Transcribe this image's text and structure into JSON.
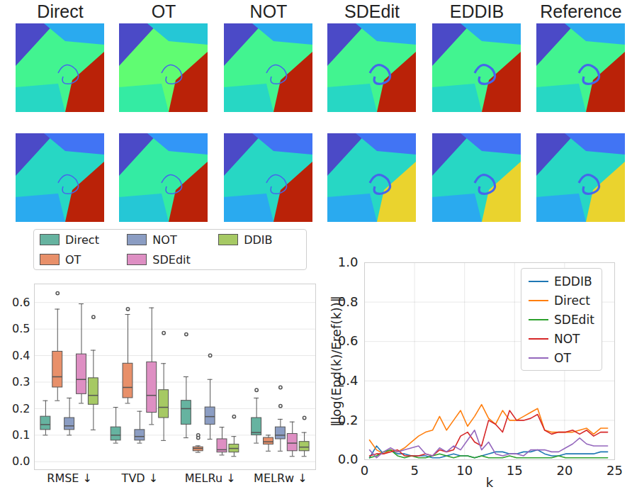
{
  "image_grid": {
    "column_titles": [
      "Direct",
      "OT",
      "NOT",
      "SDEdit",
      "EDDIB",
      "Reference"
    ]
  },
  "chart_data": [
    {
      "type": "box",
      "categories": [
        "RMSE ↓",
        "TVD ↓",
        "MELRu ↓",
        "MELRw ↓"
      ],
      "series": [
        {
          "name": "Direct",
          "color": "#66b3a0",
          "min": [
            0.1,
            0.07,
            0.09,
            0.07
          ],
          "q1": [
            0.12,
            0.08,
            0.14,
            0.1
          ],
          "median": [
            0.14,
            0.1,
            0.2,
            0.11
          ],
          "q3": [
            0.17,
            0.13,
            0.23,
            0.165
          ],
          "max": [
            0.23,
            0.205,
            0.32,
            0.24
          ],
          "outliers": [
            [],
            [],
            [
              0.48
            ],
            [
              0.27
            ]
          ]
        },
        {
          "name": "OT",
          "color": "#e8906a",
          "min": [
            0.23,
            0.22,
            0.035,
            0.04
          ],
          "q1": [
            0.28,
            0.24,
            0.04,
            0.065
          ],
          "median": [
            0.32,
            0.28,
            0.05,
            0.075
          ],
          "q3": [
            0.415,
            0.37,
            0.055,
            0.09
          ],
          "max": [
            0.575,
            0.555,
            0.06,
            0.1
          ],
          "outliers": [
            [
              0.635
            ],
            [
              0.575
            ],
            [
              0.1,
              0.09
            ],
            []
          ]
        },
        {
          "name": "NOT",
          "color": "#8b9dc3",
          "min": [
            0.1,
            0.07,
            0.085,
            0.04
          ],
          "q1": [
            0.12,
            0.08,
            0.14,
            0.085
          ],
          "median": [
            0.135,
            0.095,
            0.17,
            0.1
          ],
          "q3": [
            0.165,
            0.12,
            0.205,
            0.13
          ],
          "max": [
            0.24,
            0.19,
            0.31,
            0.16
          ],
          "outliers": [
            [],
            [],
            [
              0.4
            ],
            [
              0.21,
              0.28
            ]
          ]
        },
        {
          "name": "SDEdit",
          "color": "#de8fc3",
          "min": [
            0.22,
            0.14,
            0.025,
            0.02
          ],
          "q1": [
            0.255,
            0.185,
            0.035,
            0.04
          ],
          "median": [
            0.31,
            0.25,
            0.045,
            0.07
          ],
          "q3": [
            0.405,
            0.375,
            0.085,
            0.105
          ],
          "max": [
            0.595,
            0.58,
            0.13,
            0.15
          ],
          "outliers": [
            [],
            [],
            [],
            []
          ]
        },
        {
          "name": "DDIB",
          "color": "#a6c964",
          "min": [
            0.12,
            0.08,
            0.02,
            0.02
          ],
          "q1": [
            0.215,
            0.165,
            0.035,
            0.04
          ],
          "median": [
            0.25,
            0.205,
            0.05,
            0.055
          ],
          "q3": [
            0.315,
            0.27,
            0.065,
            0.075
          ],
          "max": [
            0.42,
            0.37,
            0.095,
            0.11
          ],
          "outliers": [
            [
              0.545
            ],
            [
              0.485
            ],
            [
              0.17
            ],
            [
              0.165
            ]
          ]
        }
      ],
      "ylim": [
        -0.03,
        0.67
      ],
      "yticks": [
        {
          "value": 0,
          "label": "0.0"
        },
        0.1,
        0.2,
        0.3,
        0.4,
        0.5,
        0.6
      ],
      "grid": true,
      "legend": "top"
    },
    {
      "type": "line",
      "x_label": "k",
      "y_label": "‖log(Epd(k)/Eref(k))‖",
      "x": [
        0.5,
        1.2,
        1.9,
        2.6,
        3.3,
        4.0,
        4.7,
        5.4,
        6.1,
        6.8,
        7.5,
        8.2,
        8.9,
        9.6,
        10.3,
        11.0,
        11.7,
        12.4,
        13.1,
        13.8,
        14.5,
        15.2,
        15.9,
        16.6,
        17.3,
        18.0,
        18.7,
        19.4,
        20.1,
        20.8,
        21.5,
        22.2,
        22.9,
        23.6,
        24.3
      ],
      "series": [
        {
          "name": "EDDIB",
          "color": "#1f77b4",
          "values": [
            0.01,
            0.07,
            0.03,
            0.05,
            0.03,
            0.03,
            0.02,
            0.02,
            0.02,
            0.01,
            0.01,
            0.02,
            0.03,
            0.02,
            0.02,
            0.01,
            0.02,
            0.03,
            0.04,
            0.04,
            0.03,
            0.03,
            0.04,
            0.04,
            0.05,
            0.03,
            0.02,
            0.02,
            0.03,
            0.03,
            0.03,
            0.03,
            0.03,
            0.04,
            0.04
          ]
        },
        {
          "name": "Direct",
          "color": "#ff7f0e",
          "values": [
            0.1,
            0.05,
            0.03,
            0.05,
            0.04,
            0.06,
            0.09,
            0.12,
            0.14,
            0.15,
            0.22,
            0.15,
            0.2,
            0.25,
            0.17,
            0.22,
            0.28,
            0.21,
            0.18,
            0.25,
            0.2,
            0.2,
            0.22,
            0.24,
            0.26,
            0.15,
            0.14,
            0.14,
            0.14,
            0.14,
            0.15,
            0.16,
            0.13,
            0.16,
            0.16
          ]
        },
        {
          "name": "SDEdit",
          "color": "#2ca02c",
          "values": [
            0.01,
            0.02,
            0.04,
            0.05,
            0.02,
            0.01,
            0.02,
            0.01,
            0.01,
            0.02,
            0.03,
            0.02,
            0.01,
            0.02,
            0.02,
            0.01,
            0.02,
            0.01,
            0.01,
            0.01,
            0.02,
            0.01,
            0.01,
            0.01,
            0.01,
            0.01,
            0.01,
            0.02,
            0.01,
            0.01,
            0.01,
            0.01,
            0.01,
            0.01,
            0.01
          ]
        },
        {
          "name": "NOT",
          "color": "#d62728",
          "values": [
            0.02,
            0.03,
            0.03,
            0.04,
            0.05,
            0.02,
            0.02,
            0.02,
            0.03,
            0.02,
            0.05,
            0.04,
            0.05,
            0.12,
            0.14,
            0.09,
            0.07,
            0.2,
            0.18,
            0.14,
            0.25,
            0.2,
            0.2,
            0.21,
            0.23,
            0.15,
            0.13,
            0.14,
            0.14,
            0.15,
            0.13,
            0.15,
            0.12,
            0.14,
            0.14
          ]
        },
        {
          "name": "OT",
          "color": "#9467bd",
          "values": [
            0.05,
            0.01,
            0.04,
            0.06,
            0.04,
            0.05,
            0.06,
            0.07,
            0.03,
            0.02,
            0.06,
            0.04,
            0.07,
            0.05,
            0.1,
            0.15,
            0.05,
            0.09,
            0.03,
            0.02,
            0.03,
            0.03,
            0.02,
            0.05,
            0.05,
            0.05,
            0.04,
            0.04,
            0.06,
            0.08,
            0.11,
            0.08,
            0.07,
            0.07,
            0.07
          ]
        }
      ],
      "xlim": [
        0,
        25
      ],
      "xticks": [
        0,
        5,
        10,
        15,
        20,
        25
      ],
      "ylim": [
        0,
        1
      ],
      "yticks": [
        {
          "value": 0,
          "label": "0.0"
        },
        0.2,
        0.4,
        0.6,
        0.8,
        {
          "value": 1,
          "label": "1.0"
        }
      ],
      "grid": true,
      "legend": "upper right"
    }
  ]
}
